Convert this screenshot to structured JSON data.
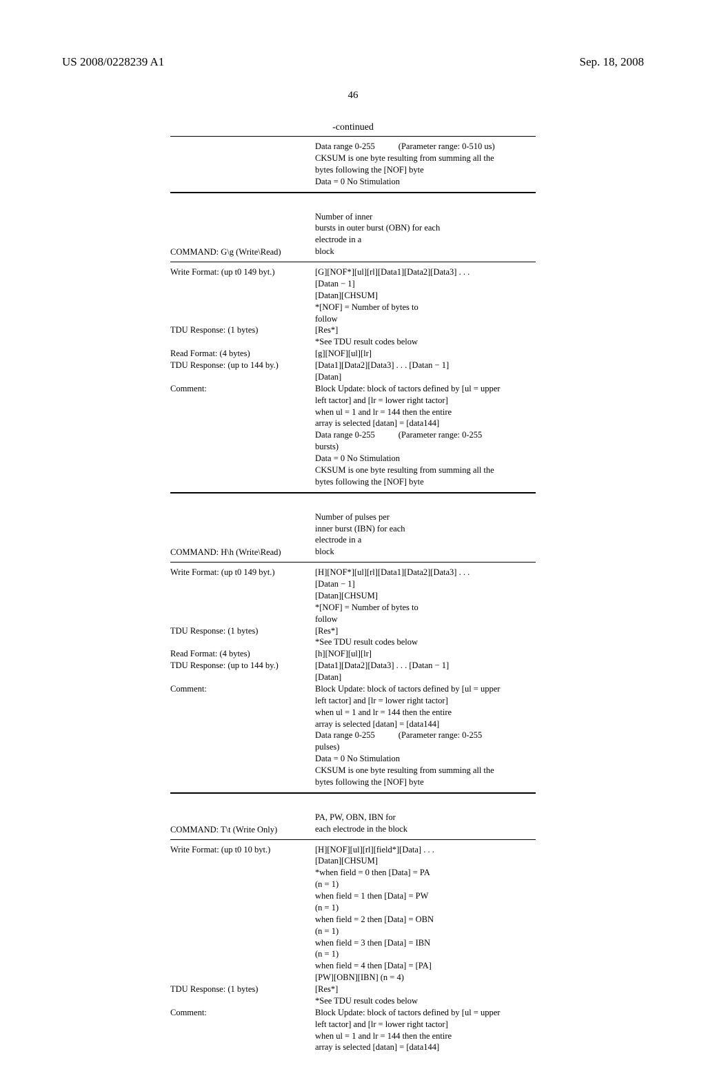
{
  "patent_number": "US 2008/0228239 A1",
  "date": "Sep. 18, 2008",
  "page_number": "46",
  "continued_label": "-continued",
  "top_block": {
    "line1a": "Data range 0-255",
    "line1b": "(Parameter range: 0-510 us)",
    "line2": "CKSUM is one byte resulting from summing all the",
    "line3": "bytes following the [NOF] byte",
    "line4": "Data = 0 No Stimulation"
  },
  "cmd_g": {
    "desc1": "Number of inner",
    "desc2": "bursts in outer burst (OBN) for each",
    "desc3": "electrode in a",
    "desc4": "block",
    "label": "COMMAND: G\\g (Write\\Read)",
    "rows": [
      {
        "l": "Write Format: (up t0 149 byt.)",
        "r": [
          "[G][NOF*][ul][rl][Data1][Data2][Data3] . . .",
          "[Datan − 1]",
          "[Datan][CHSUM]",
          "*[NOF] = Number of bytes to",
          "follow"
        ]
      },
      {
        "l": "TDU Response: (1 bytes)",
        "r": [
          "[Res*]",
          "*See TDU result codes below"
        ]
      },
      {
        "l": "Read Format: (4 bytes)",
        "r": [
          "[g][NOF][ul][lr]"
        ]
      },
      {
        "l": "TDU Response: (up to 144 by.)",
        "r": [
          "[Data1][Data2][Data3] . . . [Datan − 1]",
          "[Datan]"
        ]
      },
      {
        "l": "Comment:",
        "r": [
          "Block Update: block of tactors defined by [ul = upper",
          "left tactor] and [lr = lower right tactor]",
          "when ul = 1 and lr = 144 then the entire",
          "array is selected [datan] = [data144]"
        ]
      },
      {
        "l": "",
        "r_sub": {
          "a": "Data range 0-255",
          "b": "(Parameter range: 0-255"
        }
      },
      {
        "l": "",
        "r": [
          "bursts)",
          "Data = 0 No Stimulation",
          "CKSUM is one byte resulting from summing all the",
          "bytes following the [NOF] byte"
        ]
      }
    ]
  },
  "cmd_h": {
    "desc1": "Number of pulses per",
    "desc2": "inner burst (IBN) for each",
    "desc3": "electrode in a",
    "desc4": "block",
    "label": "COMMAND: H\\h (Write\\Read)",
    "rows": [
      {
        "l": "Write Format: (up t0 149 byt.)",
        "r": [
          "[H][NOF*][ul][rl][Data1][Data2][Data3] . . .",
          "[Datan − 1]",
          "[Datan][CHSUM]",
          "*[NOF] = Number of bytes to",
          "follow"
        ]
      },
      {
        "l": "TDU Response: (1 bytes)",
        "r": [
          "[Res*]",
          "*See TDU result codes below"
        ]
      },
      {
        "l": "Read Format: (4 bytes)",
        "r": [
          "[h][NOF][ul][lr]"
        ]
      },
      {
        "l": "TDU Response: (up to 144 by.)",
        "r": [
          "[Data1][Data2][Data3] . . . [Datan − 1]",
          "[Datan]"
        ]
      },
      {
        "l": "Comment:",
        "r": [
          "Block Update: block of tactors defined by [ul = upper",
          "left tactor] and [lr = lower right tactor]",
          "when ul = 1 and lr = 144 then the entire",
          "array is selected [datan] = [data144]"
        ]
      },
      {
        "l": "",
        "r_sub": {
          "a": "Data range 0-255",
          "b": "(Parameter range: 0-255"
        }
      },
      {
        "l": "",
        "r": [
          "pulses)",
          "Data = 0 No Stimulation",
          "CKSUM is one byte resulting from summing all the",
          "bytes following the [NOF] byte"
        ]
      }
    ]
  },
  "cmd_t": {
    "desc1": "PA, PW, OBN, IBN for",
    "desc2": "each electrode in the block",
    "label": "COMMAND: T\\t (Write Only)",
    "rows": [
      {
        "l": "Write Format: (up t0 10 byt.)",
        "r": [
          "[H][NOF][ul][rl][field*][Data] . . .",
          "[Datan][CHSUM]",
          "*when field = 0 then [Data] = PA",
          "(n = 1)",
          "when field = 1 then [Data] = PW",
          "(n = 1)",
          "when field = 2 then [Data] = OBN",
          "(n = 1)",
          "when field = 3 then [Data] = IBN",
          "(n = 1)",
          "when field = 4 then [Data] = [PA]",
          "[PW][OBN][IBN] (n = 4)"
        ]
      },
      {
        "l": "TDU Response: (1 bytes)",
        "r": [
          "[Res*]",
          "*See TDU result codes below"
        ]
      },
      {
        "l": "Comment:",
        "r": [
          "Block Update: block of tactors defined by [ul = upper",
          "left tactor] and [lr = lower right tactor]",
          "when ul = 1 and lr = 144 then the entire",
          "array is selected [datan] = [data144]"
        ]
      }
    ]
  }
}
